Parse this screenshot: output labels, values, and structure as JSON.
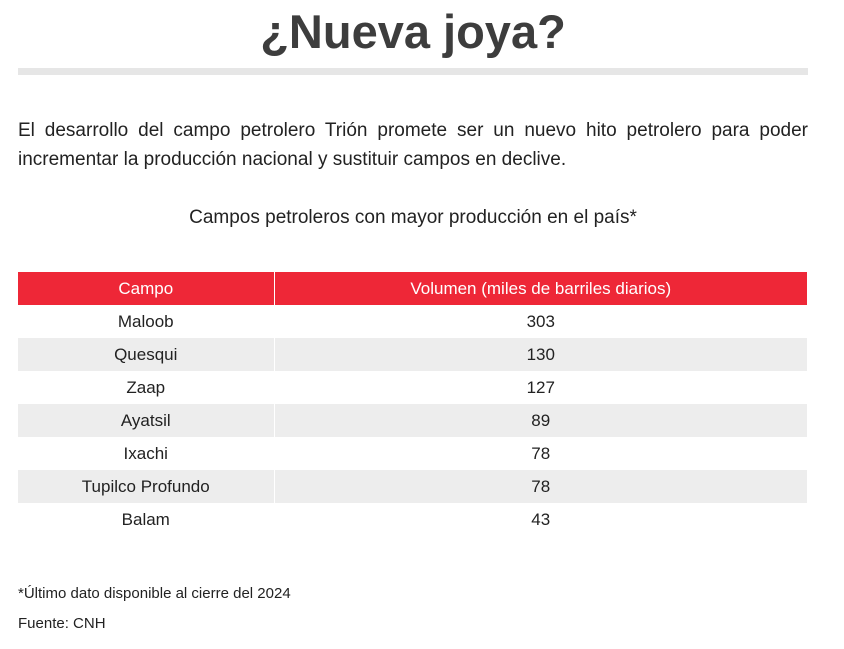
{
  "chart_data": {
    "type": "table",
    "title": "¿Nueva joya?",
    "intro": "El desarrollo del campo petrolero Trión promete ser un nuevo hito petrolero para poder incrementar la producción nacional y sustituir campos en declive.",
    "subtitle": "Campos petroleros con mayor producción en el país*",
    "columns": [
      "Campo",
      "Volumen (miles de barriles diarios)"
    ],
    "rows": [
      {
        "campo": "Maloob",
        "volumen": "303"
      },
      {
        "campo": "Quesqui",
        "volumen": "130"
      },
      {
        "campo": "Zaap",
        "volumen": "127"
      },
      {
        "campo": "Ayatsil",
        "volumen": "89"
      },
      {
        "campo": "Ixachi",
        "volumen": "78"
      },
      {
        "campo": "Tupilco Profundo",
        "volumen": "78"
      },
      {
        "campo": "Balam",
        "volumen": "43"
      }
    ],
    "footnote": "*Último dato disponible al cierre del 2024",
    "source": "Fuente: CNH"
  },
  "colors": {
    "header_bg": "#ee2737",
    "header_text": "#ffffff",
    "alt_row_bg": "#ededed",
    "title_text": "#3d3d3d",
    "rule": "#e6e6e6"
  }
}
